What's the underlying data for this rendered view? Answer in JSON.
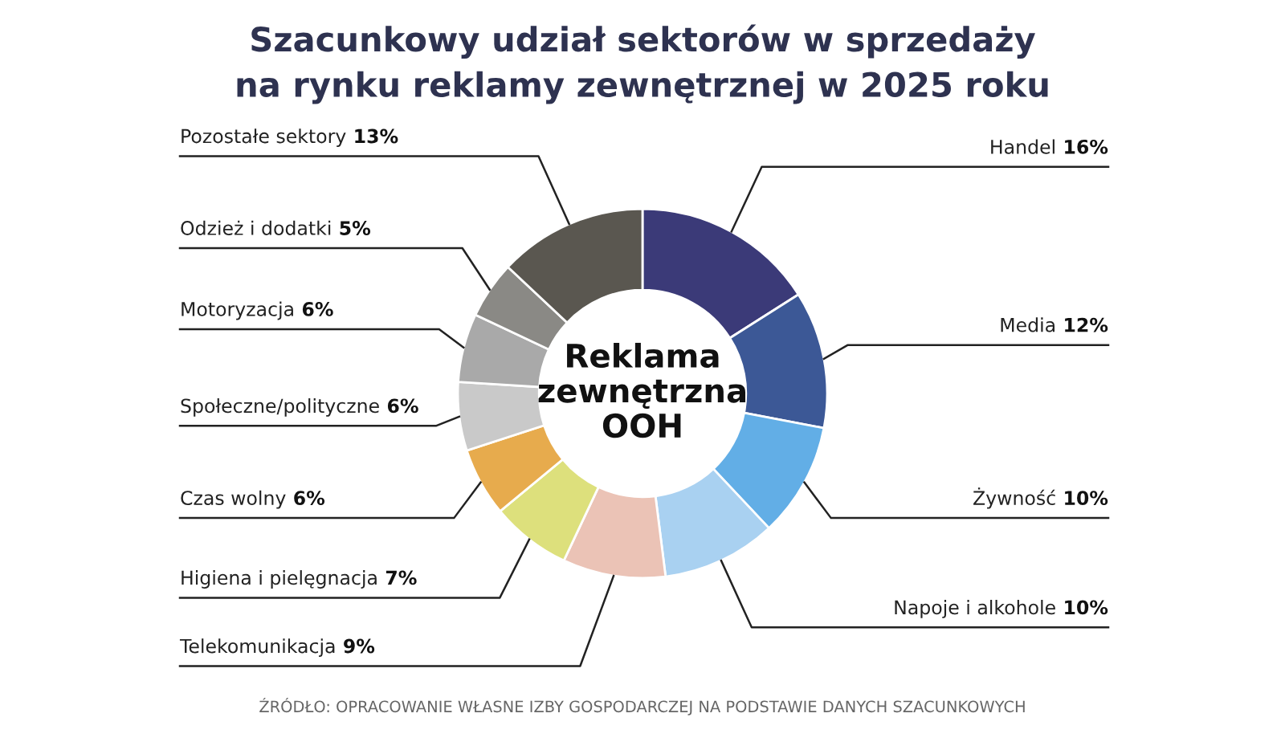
{
  "chart_data": {
    "type": "donut",
    "title": "Szacunkowy udział sektorów w sprzedaży\nna rynku reklamy zewnętrznej w 2025 roku",
    "categories": [
      "Handel",
      "Media",
      "Żywność",
      "Napoje i alkohole",
      "Telekomunikacja",
      "Higiena i pielęgnacja",
      "Czas wolny",
      "Społeczne/polityczne",
      "Motoryzacja",
      "Odzież i dodatki",
      "Pozostałe sektory"
    ],
    "values": [
      16,
      12,
      10,
      10,
      9,
      7,
      6,
      6,
      6,
      5,
      13
    ],
    "value_labels": [
      "16%",
      "12%",
      "10%",
      "10%",
      "9%",
      "7%",
      "6%",
      "6%",
      "6%",
      "5%",
      "13%"
    ],
    "colors": [
      "#3b3a78",
      "#3c5896",
      "#62aee6",
      "#a9d1f1",
      "#ebc3b6",
      "#dde07c",
      "#e7ab4d",
      "#c9c9c9",
      "#a9a9a9",
      "#8a8985",
      "#5a5750"
    ],
    "annotations": [
      "Reklama\nzewnętrzna\nOOH",
      "ŹRÓDŁO: OPRACOWANIE WŁASNE IZBY GOSPODARCZEJ NA PODSTAWIE DANYCH SZACUNKOWYCH"
    ],
    "legend": false
  }
}
